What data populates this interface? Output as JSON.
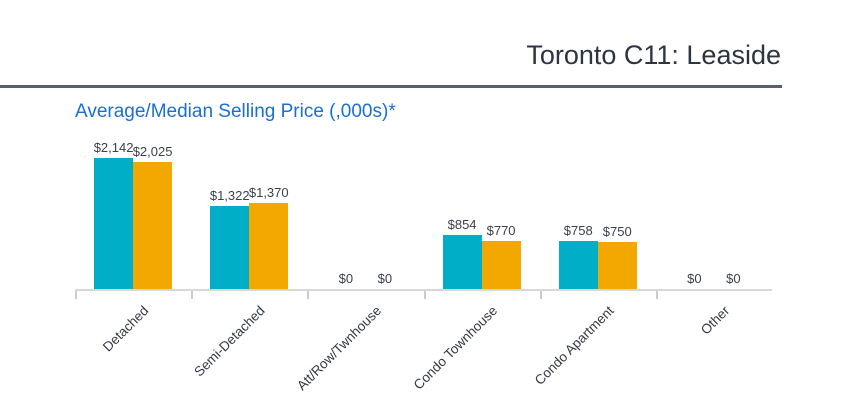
{
  "header": {
    "title": "Toronto C11: Leaside"
  },
  "chart": {
    "title": "Average/Median Selling Price (,000s)*"
  },
  "chart_data": {
    "type": "bar",
    "title": "Average/Median Selling Price (,000s)*",
    "categories": [
      "Detached",
      "Semi-Detached",
      "Att/Row/Twnhouse",
      "Condo Townhouse",
      "Condo Apartment",
      "Other"
    ],
    "series": [
      {
        "name": "Average",
        "color": "#00AEC7",
        "values": [
          2142,
          1322,
          0,
          854,
          758,
          0
        ],
        "labels": [
          "$2,142",
          "$1,322",
          "$0",
          "$854",
          "$758",
          "$0"
        ]
      },
      {
        "name": "Median",
        "color": "#F2A800",
        "values": [
          2025,
          1370,
          0,
          770,
          750,
          0
        ],
        "labels": [
          "$2,025",
          "$1,370",
          "$0",
          "$770",
          "$750",
          "$0"
        ]
      }
    ],
    "ylim": [
      0,
      2400
    ],
    "grid": false,
    "legend": "none",
    "xlabel": "",
    "ylabel": ""
  },
  "colors": {
    "accent_blue": "#1A6FD4",
    "series_teal": "#00AEC7",
    "series_orange": "#F2A800",
    "text_dark": "#333A45",
    "axis_line": "#D8D8D8",
    "divider": "#5A6067"
  }
}
